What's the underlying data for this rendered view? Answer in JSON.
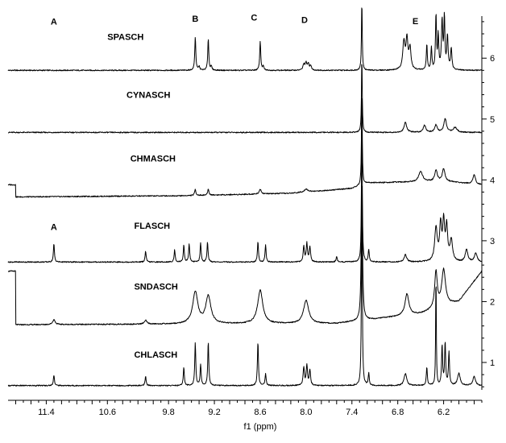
{
  "chart_data": {
    "type": "line",
    "title": "",
    "xlabel": "f1 (ppm)",
    "ylabel": "",
    "x_reversed": true,
    "xlim": [
      11.9,
      5.7
    ],
    "x_ticks": [
      "11.4",
      "10.6",
      "9.8",
      "9.2",
      "8.6",
      "8.0",
      "7.4",
      "6.8",
      "6.2"
    ],
    "x_tick_values": [
      11.4,
      10.6,
      9.8,
      9.2,
      8.6,
      8.0,
      7.4,
      6.8,
      6.2
    ],
    "y_ticks": [
      "1",
      "2",
      "3",
      "4",
      "5",
      "6"
    ],
    "y_tick_values": [
      1,
      2,
      3,
      4,
      5,
      6
    ],
    "ylim": [
      0.55,
      6.85
    ],
    "grid": false,
    "legend": "none",
    "peak_labels": [
      {
        "text": "A",
        "x": 11.3,
        "y": 6.55
      },
      {
        "text": "B",
        "x": 9.45,
        "y": 6.6
      },
      {
        "text": "C",
        "x": 8.68,
        "y": 6.62
      },
      {
        "text": "D",
        "x": 8.02,
        "y": 6.58
      },
      {
        "text": "E",
        "x": 6.57,
        "y": 6.56
      },
      {
        "text": "A",
        "x": 11.3,
        "y": 3.18
      }
    ],
    "series": [
      {
        "name": "SPASCH",
        "label_pos": {
          "x": 10.6,
          "y": 6.3
        },
        "baseline": 5.8,
        "peaks": [
          {
            "x": 9.45,
            "h": 0.55,
            "w": 0.008
          },
          {
            "x": 9.4,
            "h": 0.06,
            "w": 0.01
          },
          {
            "x": 9.28,
            "h": 0.52,
            "w": 0.008
          },
          {
            "x": 9.24,
            "h": 0.06,
            "w": 0.01
          },
          {
            "x": 8.6,
            "h": 0.48,
            "w": 0.008
          },
          {
            "x": 8.56,
            "h": 0.06,
            "w": 0.01
          },
          {
            "x": 8.03,
            "h": 0.1,
            "w": 0.012
          },
          {
            "x": 8.0,
            "h": 0.12,
            "w": 0.012
          },
          {
            "x": 7.97,
            "h": 0.1,
            "w": 0.012
          },
          {
            "x": 7.94,
            "h": 0.07,
            "w": 0.012
          },
          {
            "x": 7.27,
            "h": 1.15,
            "w": 0.006
          },
          {
            "x": 6.72,
            "h": 0.45,
            "w": 0.018
          },
          {
            "x": 6.68,
            "h": 0.48,
            "w": 0.015
          },
          {
            "x": 6.64,
            "h": 0.35,
            "w": 0.015
          },
          {
            "x": 6.42,
            "h": 0.42,
            "w": 0.008
          },
          {
            "x": 6.36,
            "h": 0.36,
            "w": 0.008
          },
          {
            "x": 6.3,
            "h": 0.9,
            "w": 0.008
          },
          {
            "x": 6.27,
            "h": 0.55,
            "w": 0.008
          },
          {
            "x": 6.22,
            "h": 0.8,
            "w": 0.01
          },
          {
            "x": 6.19,
            "h": 0.85,
            "w": 0.008
          },
          {
            "x": 6.15,
            "h": 0.55,
            "w": 0.01
          },
          {
            "x": 6.1,
            "h": 0.35,
            "w": 0.01
          }
        ]
      },
      {
        "name": "CYNASCH",
        "label_pos": {
          "x": 10.35,
          "y": 5.35
        },
        "baseline": 4.78,
        "peaks": [
          {
            "x": 7.27,
            "h": 1.25,
            "w": 0.006
          },
          {
            "x": 6.7,
            "h": 0.17,
            "w": 0.02
          },
          {
            "x": 6.45,
            "h": 0.12,
            "w": 0.02
          },
          {
            "x": 6.3,
            "h": 0.12,
            "w": 0.02
          },
          {
            "x": 6.18,
            "h": 0.22,
            "w": 0.02
          },
          {
            "x": 6.05,
            "h": 0.08,
            "w": 0.03
          }
        ]
      },
      {
        "name": "CHMASCH",
        "label_pos": {
          "x": 10.3,
          "y": 4.3
        },
        "baseline": 3.72,
        "drift": [
          [
            11.8,
            3.72
          ],
          [
            9.6,
            3.74
          ],
          [
            8.2,
            3.78
          ],
          [
            7.4,
            3.86
          ],
          [
            7.2,
            3.95
          ],
          [
            6.2,
            3.98
          ],
          [
            5.7,
            3.92
          ]
        ],
        "peaks": [
          {
            "x": 9.45,
            "h": 0.1,
            "w": 0.01
          },
          {
            "x": 9.28,
            "h": 0.1,
            "w": 0.01
          },
          {
            "x": 8.6,
            "h": 0.08,
            "w": 0.015
          },
          {
            "x": 8.0,
            "h": 0.05,
            "w": 0.03
          },
          {
            "x": 7.27,
            "h": 1.6,
            "w": 0.006
          },
          {
            "x": 6.5,
            "h": 0.17,
            "w": 0.03
          },
          {
            "x": 6.3,
            "h": 0.18,
            "w": 0.02
          },
          {
            "x": 6.2,
            "h": 0.2,
            "w": 0.02
          },
          {
            "x": 5.8,
            "h": 0.15,
            "w": 0.02
          }
        ]
      },
      {
        "name": "FLASCH",
        "label_pos": {
          "x": 10.25,
          "y": 3.2
        },
        "baseline": 2.65,
        "peaks": [
          {
            "x": 11.3,
            "h": 0.3,
            "w": 0.008
          },
          {
            "x": 10.1,
            "h": 0.18,
            "w": 0.008
          },
          {
            "x": 9.72,
            "h": 0.2,
            "w": 0.008
          },
          {
            "x": 9.6,
            "h": 0.28,
            "w": 0.008
          },
          {
            "x": 9.53,
            "h": 0.3,
            "w": 0.008
          },
          {
            "x": 9.38,
            "h": 0.32,
            "w": 0.008
          },
          {
            "x": 9.29,
            "h": 0.33,
            "w": 0.008
          },
          {
            "x": 8.63,
            "h": 0.33,
            "w": 0.008
          },
          {
            "x": 8.53,
            "h": 0.28,
            "w": 0.008
          },
          {
            "x": 8.03,
            "h": 0.25,
            "w": 0.01
          },
          {
            "x": 7.99,
            "h": 0.3,
            "w": 0.01
          },
          {
            "x": 7.95,
            "h": 0.25,
            "w": 0.01
          },
          {
            "x": 7.6,
            "h": 0.08,
            "w": 0.01
          },
          {
            "x": 7.27,
            "h": 2.6,
            "w": 0.006
          },
          {
            "x": 7.18,
            "h": 0.2,
            "w": 0.008
          },
          {
            "x": 6.7,
            "h": 0.12,
            "w": 0.02
          },
          {
            "x": 6.3,
            "h": 0.55,
            "w": 0.02
          },
          {
            "x": 6.24,
            "h": 0.58,
            "w": 0.015
          },
          {
            "x": 6.2,
            "h": 0.62,
            "w": 0.015
          },
          {
            "x": 6.16,
            "h": 0.55,
            "w": 0.015
          },
          {
            "x": 6.1,
            "h": 0.35,
            "w": 0.02
          },
          {
            "x": 5.9,
            "h": 0.2,
            "w": 0.02
          },
          {
            "x": 5.78,
            "h": 0.15,
            "w": 0.02
          }
        ]
      },
      {
        "name": "SNDASCH",
        "label_pos": {
          "x": 10.25,
          "y": 2.2
        },
        "baseline": 1.62,
        "drift": [
          [
            11.8,
            1.62
          ],
          [
            7.6,
            1.64
          ],
          [
            6.5,
            1.8
          ],
          [
            6.0,
            2.0
          ],
          [
            5.7,
            2.5
          ]
        ],
        "peaks": [
          {
            "x": 11.3,
            "h": 0.08,
            "w": 0.02
          },
          {
            "x": 10.1,
            "h": 0.06,
            "w": 0.02
          },
          {
            "x": 9.45,
            "h": 0.52,
            "w": 0.04
          },
          {
            "x": 9.28,
            "h": 0.45,
            "w": 0.04
          },
          {
            "x": 8.6,
            "h": 0.55,
            "w": 0.04
          },
          {
            "x": 8.0,
            "h": 0.38,
            "w": 0.04
          },
          {
            "x": 7.27,
            "h": 2.3,
            "w": 0.01
          },
          {
            "x": 6.68,
            "h": 0.35,
            "w": 0.03
          },
          {
            "x": 6.3,
            "h": 0.6,
            "w": 0.02
          },
          {
            "x": 6.2,
            "h": 0.6,
            "w": 0.03
          }
        ]
      },
      {
        "name": "CHLASCH",
        "label_pos": {
          "x": 10.25,
          "y": 1.08
        },
        "baseline": 0.62,
        "peaks": [
          {
            "x": 11.3,
            "h": 0.18,
            "w": 0.008
          },
          {
            "x": 10.1,
            "h": 0.15,
            "w": 0.008
          },
          {
            "x": 9.6,
            "h": 0.3,
            "w": 0.008
          },
          {
            "x": 9.45,
            "h": 0.7,
            "w": 0.008
          },
          {
            "x": 9.38,
            "h": 0.35,
            "w": 0.008
          },
          {
            "x": 9.28,
            "h": 0.72,
            "w": 0.008
          },
          {
            "x": 8.63,
            "h": 0.72,
            "w": 0.008
          },
          {
            "x": 8.53,
            "h": 0.2,
            "w": 0.008
          },
          {
            "x": 8.03,
            "h": 0.3,
            "w": 0.01
          },
          {
            "x": 7.99,
            "h": 0.33,
            "w": 0.01
          },
          {
            "x": 7.95,
            "h": 0.25,
            "w": 0.01
          },
          {
            "x": 7.27,
            "h": 3.6,
            "w": 0.006
          },
          {
            "x": 7.18,
            "h": 0.2,
            "w": 0.008
          },
          {
            "x": 6.7,
            "h": 0.2,
            "w": 0.02
          },
          {
            "x": 6.42,
            "h": 0.3,
            "w": 0.008
          },
          {
            "x": 6.3,
            "h": 1.9,
            "w": 0.005
          },
          {
            "x": 6.22,
            "h": 0.65,
            "w": 0.008
          },
          {
            "x": 6.18,
            "h": 0.7,
            "w": 0.008
          },
          {
            "x": 6.13,
            "h": 0.55,
            "w": 0.008
          },
          {
            "x": 6.0,
            "h": 0.2,
            "w": 0.02
          },
          {
            "x": 5.8,
            "h": 0.15,
            "w": 0.02
          }
        ]
      }
    ]
  }
}
